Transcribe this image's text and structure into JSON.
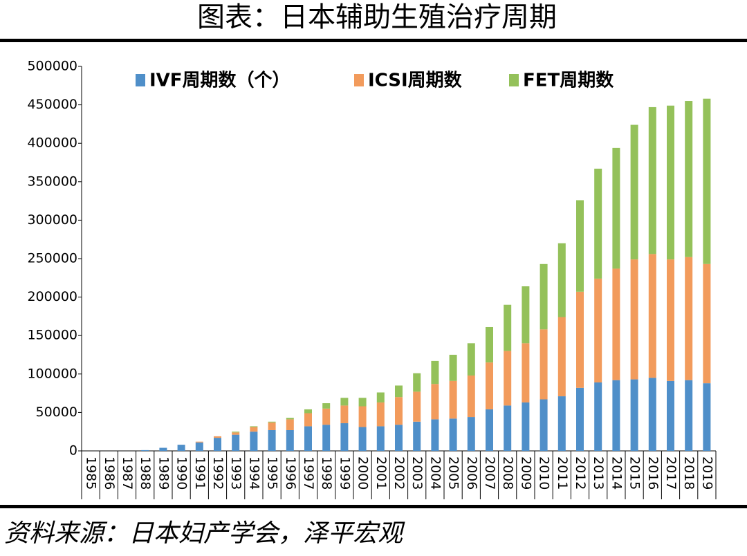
{
  "chart_data": {
    "type": "stacked_bar",
    "title": "图表：日本辅助生殖治疗周期",
    "source": "资料来源：日本妇产学会，泽平宏观",
    "categories": [
      "1985",
      "1986",
      "1987",
      "1988",
      "1989",
      "1990",
      "1991",
      "1992",
      "1993",
      "1994",
      "1995",
      "1996",
      "1997",
      "1998",
      "1999",
      "2000",
      "2001",
      "2002",
      "2003",
      "2004",
      "2005",
      "2006",
      "2007",
      "2008",
      "2009",
      "2010",
      "2011",
      "2012",
      "2013",
      "2014",
      "2015",
      "2016",
      "2017",
      "2018",
      "2019"
    ],
    "series": [
      {
        "name": "IVF周期数（个）",
        "color": "#4f8fc9",
        "values": [
          0,
          0,
          0,
          1000,
          4000,
          8000,
          11000,
          17000,
          21000,
          25000,
          27000,
          27000,
          32000,
          34000,
          36000,
          31000,
          32000,
          34000,
          38000,
          41000,
          42000,
          44000,
          54000,
          59000,
          63000,
          67000,
          71000,
          82000,
          89000,
          92000,
          93000,
          95000,
          91000,
          92000,
          88000
        ]
      },
      {
        "name": "ICSI周期数",
        "color": "#f29b5c",
        "values": [
          0,
          0,
          0,
          0,
          0,
          0,
          1000,
          2000,
          3000,
          6000,
          10000,
          14000,
          17000,
          21000,
          23000,
          27000,
          31000,
          36000,
          39000,
          46000,
          49000,
          54000,
          61000,
          71000,
          77000,
          91000,
          103000,
          125000,
          135000,
          145000,
          156000,
          161000,
          158000,
          160000,
          155000
        ]
      },
      {
        "name": "FET周期数",
        "color": "#94c15a",
        "values": [
          0,
          0,
          0,
          0,
          0,
          0,
          0,
          0,
          1000,
          1000,
          1000,
          2000,
          5000,
          7000,
          10000,
          11000,
          13000,
          15000,
          24000,
          30000,
          34000,
          42000,
          46000,
          60000,
          74000,
          85000,
          96000,
          119000,
          143000,
          157000,
          175000,
          191000,
          200000,
          203000,
          215000
        ]
      }
    ],
    "ylim": [
      0,
      500000
    ],
    "yticks": [
      0,
      50000,
      100000,
      150000,
      200000,
      250000,
      300000,
      350000,
      400000,
      450000,
      500000
    ]
  }
}
